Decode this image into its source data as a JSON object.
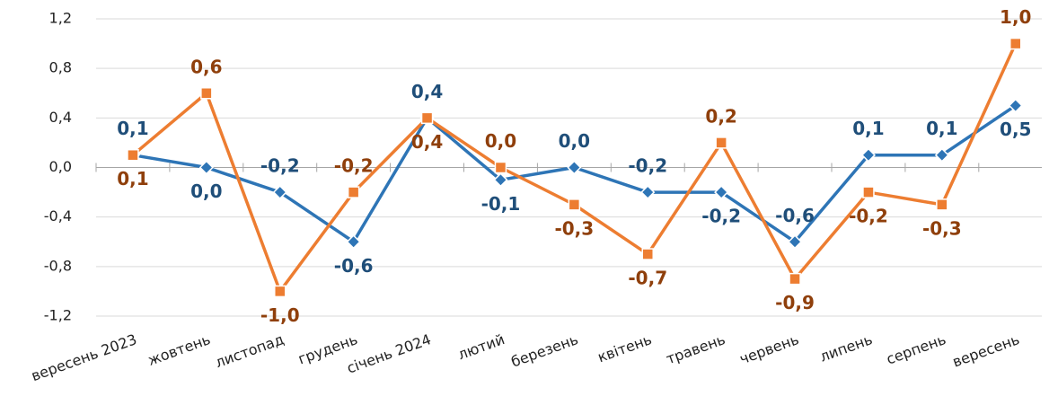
{
  "chart_data": {
    "type": "line",
    "categories": [
      "вересень 2023",
      "жовтень",
      "листопад",
      "грудень",
      "січень 2024",
      "лютий",
      "березень",
      "квітень",
      "травень",
      "червень",
      "липень",
      "серпень",
      "вересень"
    ],
    "series": [
      {
        "color": "#2e75b6",
        "label_color": "#1f4e79",
        "marker": "diamond",
        "values": [
          0.1,
          0.0,
          -0.2,
          -0.6,
          0.4,
          -0.1,
          0.0,
          -0.2,
          -0.2,
          -0.6,
          0.1,
          0.1,
          0.5
        ],
        "value_labels": [
          "0,1",
          "0,0",
          "-0,2",
          "-0,6",
          "0,4",
          "-0,1",
          "0,0",
          "-0,2",
          "-0,2",
          "-0,6",
          "0,1",
          "0,1",
          "0,5"
        ]
      },
      {
        "color": "#ed7d31",
        "label_color": "#8f3f0b",
        "marker": "square",
        "values": [
          0.1,
          0.6,
          -1.0,
          -0.2,
          0.4,
          0.0,
          -0.3,
          -0.7,
          0.2,
          -0.9,
          -0.2,
          -0.3,
          1.0
        ],
        "value_labels": [
          "0,1",
          "0,6",
          "-1,0",
          "-0,2",
          "0,4",
          "0,0",
          "-0,3",
          "-0,7",
          "0,2",
          "-0,9",
          "-0,2",
          "-0,3",
          "1,0"
        ]
      }
    ],
    "ylim": [
      -1.2,
      1.2
    ],
    "yticks": [
      {
        "value": -1.2,
        "label": "-1,2"
      },
      {
        "value": -0.8,
        "label": "-0,8"
      },
      {
        "value": -0.4,
        "label": "-0,4"
      },
      {
        "value": 0.0,
        "label": "0,0"
      },
      {
        "value": 0.4,
        "label": "0,4"
      },
      {
        "value": 0.8,
        "label": "0,8"
      },
      {
        "value": 1.2,
        "label": "1,2"
      }
    ],
    "grid": true
  }
}
